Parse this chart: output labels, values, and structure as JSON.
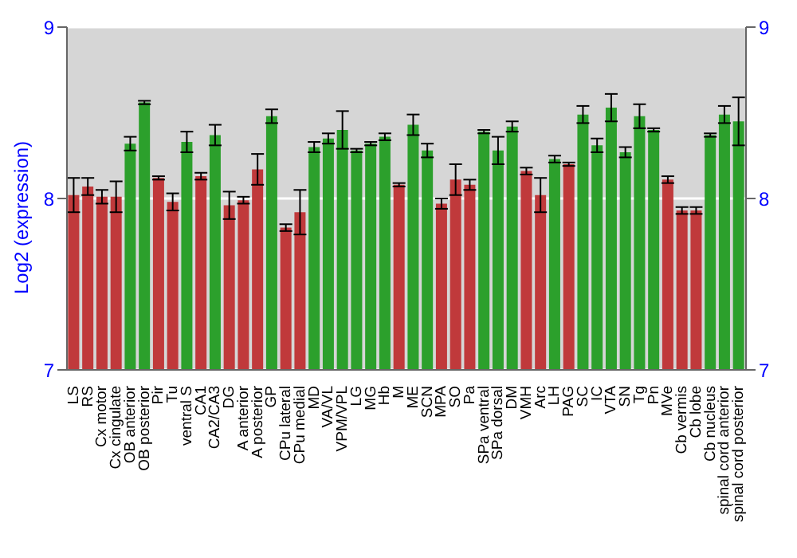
{
  "chart_data": {
    "type": "bar",
    "ylabel": "Log2 (expression)",
    "categories": [
      "LS",
      "RS",
      "Cx motor",
      "Cx cingulate",
      "OB anterior",
      "OB posterior",
      "Pir",
      "Tu",
      "ventral S",
      "CA1",
      "CA2/CA3",
      "DG",
      "A anterior",
      "A posterior",
      "GP",
      "CPu lateral",
      "CPu medial",
      "MD",
      "VA/VL",
      "VPM/VPL",
      "LG",
      "MG",
      "Hb",
      "M",
      "ME",
      "SCN",
      "MPA",
      "SO",
      "Pa",
      "SPa ventral",
      "SPa dorsal",
      "DM",
      "VMH",
      "Arc",
      "LH",
      "PAG",
      "SC",
      "IC",
      "VTA",
      "SN",
      "Tg",
      "Pn",
      "MVe",
      "Cb vermis",
      "Cb lobe",
      "Cb nucleus",
      "spinal cord anterior",
      "spinal cord posterior"
    ],
    "values": [
      8.02,
      8.07,
      8.01,
      8.01,
      8.32,
      8.56,
      8.12,
      7.98,
      8.33,
      8.13,
      8.37,
      7.96,
      7.99,
      8.17,
      8.48,
      7.83,
      7.92,
      8.3,
      8.35,
      8.4,
      8.28,
      8.32,
      8.36,
      8.08,
      8.43,
      8.28,
      7.97,
      8.11,
      8.08,
      8.39,
      8.28,
      8.42,
      8.16,
      8.02,
      8.23,
      8.2,
      8.49,
      8.31,
      8.53,
      8.27,
      8.48,
      8.4,
      8.11,
      7.93,
      7.93,
      8.37,
      8.49,
      8.45
    ],
    "errors": [
      0.1,
      0.05,
      0.04,
      0.09,
      0.04,
      0.01,
      0.01,
      0.05,
      0.06,
      0.02,
      0.06,
      0.08,
      0.02,
      0.09,
      0.04,
      0.02,
      0.13,
      0.03,
      0.03,
      0.11,
      0.01,
      0.01,
      0.02,
      0.01,
      0.06,
      0.04,
      0.03,
      0.09,
      0.03,
      0.01,
      0.08,
      0.03,
      0.02,
      0.1,
      0.02,
      0.01,
      0.05,
      0.04,
      0.08,
      0.03,
      0.07,
      0.01,
      0.02,
      0.02,
      0.02,
      0.01,
      0.05,
      0.14
    ],
    "colors": [
      "#c0393b",
      "#c0393b",
      "#c0393b",
      "#c0393b",
      "#2ca02c",
      "#2ca02c",
      "#c0393b",
      "#c0393b",
      "#2ca02c",
      "#c0393b",
      "#2ca02c",
      "#c0393b",
      "#c0393b",
      "#c0393b",
      "#2ca02c",
      "#c0393b",
      "#c0393b",
      "#2ca02c",
      "#2ca02c",
      "#2ca02c",
      "#2ca02c",
      "#2ca02c",
      "#2ca02c",
      "#c0393b",
      "#2ca02c",
      "#2ca02c",
      "#c0393b",
      "#c0393b",
      "#c0393b",
      "#2ca02c",
      "#2ca02c",
      "#2ca02c",
      "#c0393b",
      "#c0393b",
      "#2ca02c",
      "#c0393b",
      "#2ca02c",
      "#2ca02c",
      "#2ca02c",
      "#2ca02c",
      "#2ca02c",
      "#2ca02c",
      "#c0393b",
      "#c0393b",
      "#c0393b",
      "#2ca02c",
      "#2ca02c",
      "#2ca02c"
    ],
    "ylim": [
      7,
      9
    ],
    "yticks": [
      7,
      8,
      9
    ],
    "y2lim": [
      7,
      9
    ],
    "y2ticks": [
      7,
      8,
      9
    ],
    "grid": "y"
  }
}
